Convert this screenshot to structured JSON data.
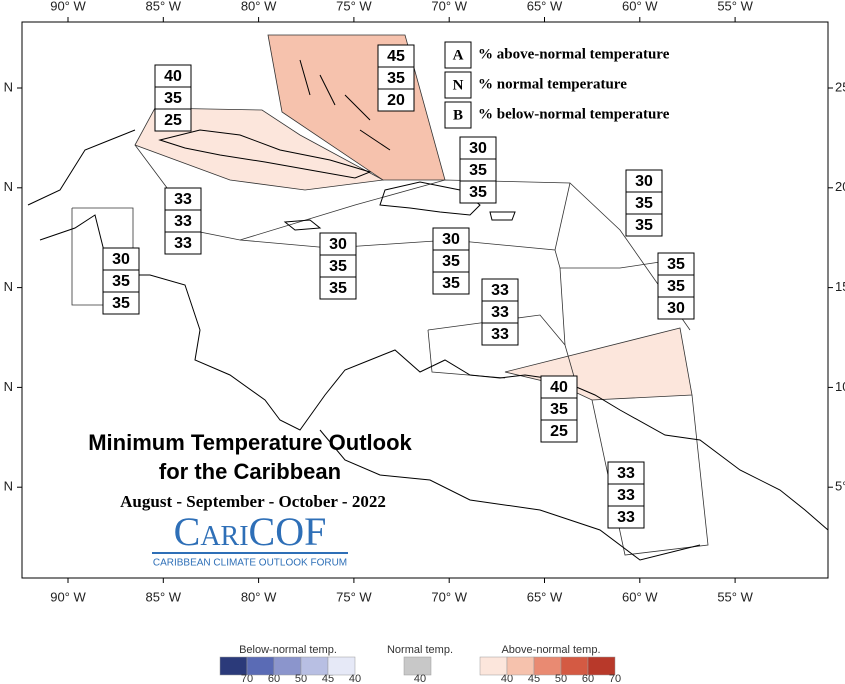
{
  "axes": {
    "top_labels": [
      "90° W",
      "85° W",
      "80° W",
      "75° W",
      "70° W",
      "65° W",
      "60° W",
      "55° W"
    ],
    "bottom_labels": [
      "90° W",
      "85° W",
      "80° W",
      "75° W",
      "70° W",
      "65° W",
      "60° W",
      "55° W"
    ],
    "left_labels": [
      "N",
      "N",
      "N",
      "N",
      "N"
    ],
    "right_labels": [
      "25",
      "20",
      "15",
      "10",
      "5°"
    ]
  },
  "key": {
    "rows": [
      {
        "letter": "A",
        "text": "% above-normal temperature"
      },
      {
        "letter": "N",
        "text": "% normal temperature"
      },
      {
        "letter": "B",
        "text": "% below-normal temperature"
      }
    ]
  },
  "regions": [
    {
      "above": 40,
      "normal": 35,
      "below": 25
    },
    {
      "above": 45,
      "normal": 35,
      "below": 20
    },
    {
      "above": 30,
      "normal": 35,
      "below": 35
    },
    {
      "above": 30,
      "normal": 35,
      "below": 35
    },
    {
      "above": 33,
      "normal": 33,
      "below": 33
    },
    {
      "above": 30,
      "normal": 35,
      "below": 35
    },
    {
      "above": 30,
      "normal": 35,
      "below": 35
    },
    {
      "above": 30,
      "normal": 35,
      "below": 35
    },
    {
      "above": 35,
      "normal": 35,
      "below": 30
    },
    {
      "above": 33,
      "normal": 33,
      "below": 33
    },
    {
      "above": 40,
      "normal": 35,
      "below": 25
    },
    {
      "above": 33,
      "normal": 33,
      "below": 33
    }
  ],
  "title": {
    "line1": "Minimum Temperature Outlook",
    "line2": "for the Caribbean",
    "period": "August - September - October - 2022"
  },
  "logo": {
    "name": "CariCOF",
    "tagline": "CARIBBEAN CLIMATE OUTLOOK FORUM"
  },
  "legend_scale": {
    "below": {
      "label": "Below-normal temp.",
      "steps": [
        {
          "value": 70,
          "color": "#2b3a7a"
        },
        {
          "value": 60,
          "color": "#5a6bb5"
        },
        {
          "value": 50,
          "color": "#8b95cc"
        },
        {
          "value": 45,
          "color": "#b8bfe3"
        },
        {
          "value": 40,
          "color": "#e6e9f7"
        }
      ]
    },
    "normal": {
      "label": "Normal temp.",
      "steps": [
        {
          "value": 40,
          "color": "#c8c8c8"
        }
      ]
    },
    "above": {
      "label": "Above-normal temp.",
      "steps": [
        {
          "value": 40,
          "color": "#fce6dc"
        },
        {
          "value": 45,
          "color": "#f6c2ad"
        },
        {
          "value": 50,
          "color": "#e98a72"
        },
        {
          "value": 60,
          "color": "#d45a43"
        },
        {
          "value": 70,
          "color": "#b8392a"
        }
      ]
    }
  }
}
